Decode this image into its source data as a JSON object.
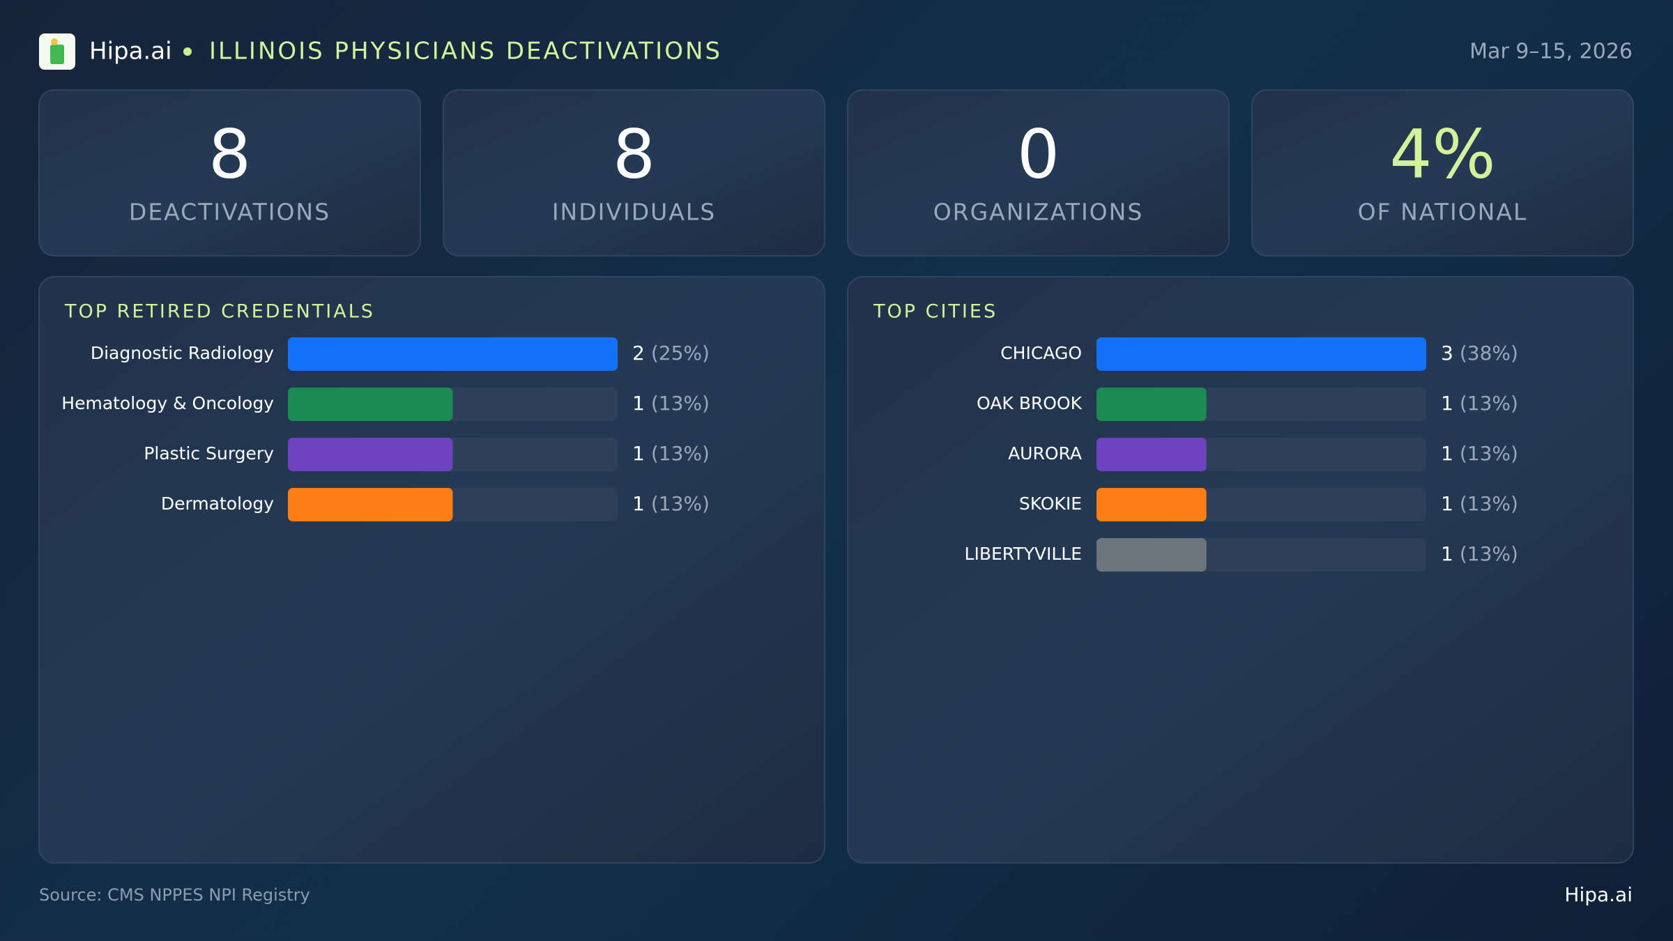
{
  "header": {
    "brand": "Hipa.ai",
    "title": "ILLINOIS PHYSICIANS DEACTIVATIONS",
    "date": "Mar 9–15, 2026"
  },
  "kpis": [
    {
      "value": "8",
      "label": "DEACTIVATIONS"
    },
    {
      "value": "8",
      "label": "INDIVIDUALS"
    },
    {
      "value": "0",
      "label": "ORGANIZATIONS"
    },
    {
      "value": "4%",
      "label": "OF NATIONAL"
    }
  ],
  "chart_data": [
    {
      "type": "bar",
      "title": "TOP RETIRED CREDENTIALS",
      "categories": [
        "Diagnostic Radiology",
        "Hematology & Oncology",
        "Plastic Surgery",
        "Dermatology"
      ],
      "values": [
        2,
        1,
        1,
        1
      ],
      "share_labels": [
        "(25%)",
        "(13%)",
        "(13%)",
        "(13%)"
      ],
      "colors": [
        "#1570fa",
        "#1c8a55",
        "#6f42c1",
        "#fd7e14"
      ],
      "xlim": [
        0,
        2
      ]
    },
    {
      "type": "bar",
      "title": "TOP CITIES",
      "categories": [
        "CHICAGO",
        "OAK BROOK",
        "AURORA",
        "SKOKIE",
        "LIBERTYVILLE"
      ],
      "values": [
        3,
        1,
        1,
        1,
        1
      ],
      "share_labels": [
        "(38%)",
        "(13%)",
        "(13%)",
        "(13%)",
        "(13%)"
      ],
      "colors": [
        "#1570fa",
        "#1c8a55",
        "#6f42c1",
        "#fd7e14",
        "#6c757d"
      ],
      "xlim": [
        0,
        3
      ]
    }
  ],
  "footer": {
    "source": "Source: CMS NPPES NPI Registry",
    "brand": "Hipa.ai"
  }
}
